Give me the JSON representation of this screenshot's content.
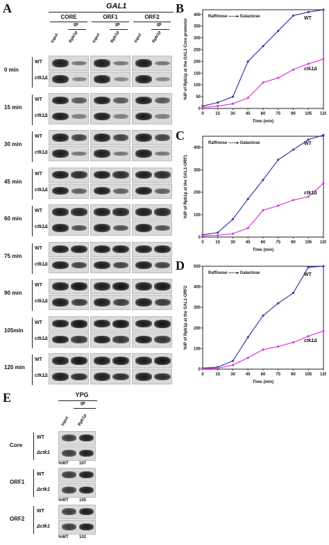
{
  "panels": {
    "A": "A",
    "B": "B",
    "C": "C",
    "D": "D",
    "E": "E"
  },
  "panel_a": {
    "gene": "GAL1",
    "regions": [
      "CORE",
      "ORF1",
      "ORF2"
    ],
    "input_label": "Input",
    "ip_label": "IP",
    "antibody_label": "Rpb1p",
    "timepoints": [
      "0 min",
      "15 min",
      "30 min",
      "45 min",
      "60 min",
      "75 min",
      "90 min",
      "105min",
      "120 min"
    ],
    "strains": [
      "WT",
      "ctk1Δ"
    ]
  },
  "panel_e": {
    "condition": "YPG",
    "input_label": "Input",
    "ip_label": "IP",
    "antibody_label": "Rpb1p",
    "regions": [
      "Core",
      "ORF1",
      "ORF2"
    ],
    "strains": [
      "WT",
      "Δctk1"
    ],
    "pct_label": "%WT",
    "pct_values": [
      "107",
      "105",
      "102"
    ]
  },
  "chart_data": [
    {
      "type": "line",
      "panel": "B",
      "annotation": "Raffinose ——▸ Galactose",
      "xlabel": "Time (min)",
      "ylabel": "%IP of Rpb1p at the GAL1-Core promoter",
      "x": [
        0,
        15,
        30,
        45,
        60,
        75,
        90,
        105,
        120
      ],
      "xlim": [
        0,
        120
      ],
      "ylim": [
        0,
        420
      ],
      "yticks": [
        0,
        50,
        100,
        150,
        200,
        250,
        300,
        350,
        400
      ],
      "series": [
        {
          "name": "WT",
          "color": "#3a3aa8",
          "values": [
            10,
            25,
            50,
            200,
            265,
            330,
            395,
            410,
            420
          ]
        },
        {
          "name": "ctk1Δ",
          "color": "#d63cd6",
          "values": [
            5,
            10,
            20,
            45,
            110,
            130,
            165,
            190,
            210
          ]
        }
      ]
    },
    {
      "type": "line",
      "panel": "C",
      "annotation": "Raffinose ——▸ Galactose",
      "xlabel": "Time (min)",
      "ylabel": "%IP of Rpb1p at the GAL1-ORF1",
      "x": [
        0,
        15,
        30,
        45,
        60,
        75,
        90,
        105,
        120
      ],
      "xlim": [
        0,
        120
      ],
      "ylim": [
        0,
        450
      ],
      "yticks": [
        0,
        100,
        200,
        300,
        400
      ],
      "series": [
        {
          "name": "WT",
          "color": "#3a3aa8",
          "values": [
            10,
            20,
            80,
            170,
            255,
            345,
            390,
            435,
            455
          ]
        },
        {
          "name": "ctk1Δ",
          "color": "#d63cd6",
          "values": [
            5,
            8,
            15,
            40,
            120,
            140,
            165,
            180,
            240
          ]
        }
      ]
    },
    {
      "type": "line",
      "panel": "D",
      "annotation": "Raffinose ——▸ Galactose",
      "xlabel": "Time (min)",
      "ylabel": "%IP of Rpb1p at the GAL1-ORF2",
      "x": [
        0,
        15,
        30,
        45,
        60,
        75,
        90,
        105,
        120
      ],
      "xlim": [
        0,
        120
      ],
      "ylim": [
        0,
        500
      ],
      "yticks": [
        0,
        100,
        200,
        300,
        400,
        500
      ],
      "series": [
        {
          "name": "WT",
          "color": "#3a3aa8",
          "values": [
            5,
            10,
            40,
            155,
            260,
            320,
            370,
            495,
            500
          ]
        },
        {
          "name": "ctk1Δ",
          "color": "#d63cd6",
          "values": [
            2,
            5,
            20,
            55,
            95,
            110,
            130,
            160,
            185
          ]
        }
      ]
    }
  ]
}
